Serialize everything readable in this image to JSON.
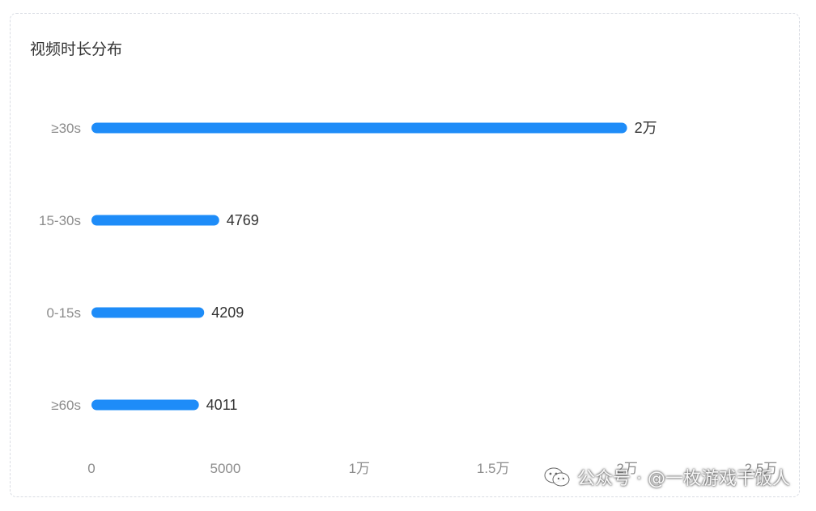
{
  "chart_data": {
    "type": "bar",
    "orientation": "horizontal",
    "title": "视频时长分布",
    "categories": [
      "≥30s",
      "15-30s",
      "0-15s",
      "≥60s"
    ],
    "values": [
      20000,
      4769,
      4209,
      4011
    ],
    "value_labels": [
      "2万",
      "4769",
      "4209",
      "4011"
    ],
    "x_ticks": [
      0,
      5000,
      10000,
      15000,
      20000,
      25000
    ],
    "x_tick_labels": [
      "0",
      "5000",
      "1万",
      "1.5万",
      "2万",
      "2.5万"
    ],
    "xlim": [
      0,
      25000
    ],
    "grid": false,
    "bar_color": "#1e8cf8"
  },
  "watermark": {
    "text": "公众号 · @一枚游戏干饭人",
    "icon": "wechat-icon"
  }
}
